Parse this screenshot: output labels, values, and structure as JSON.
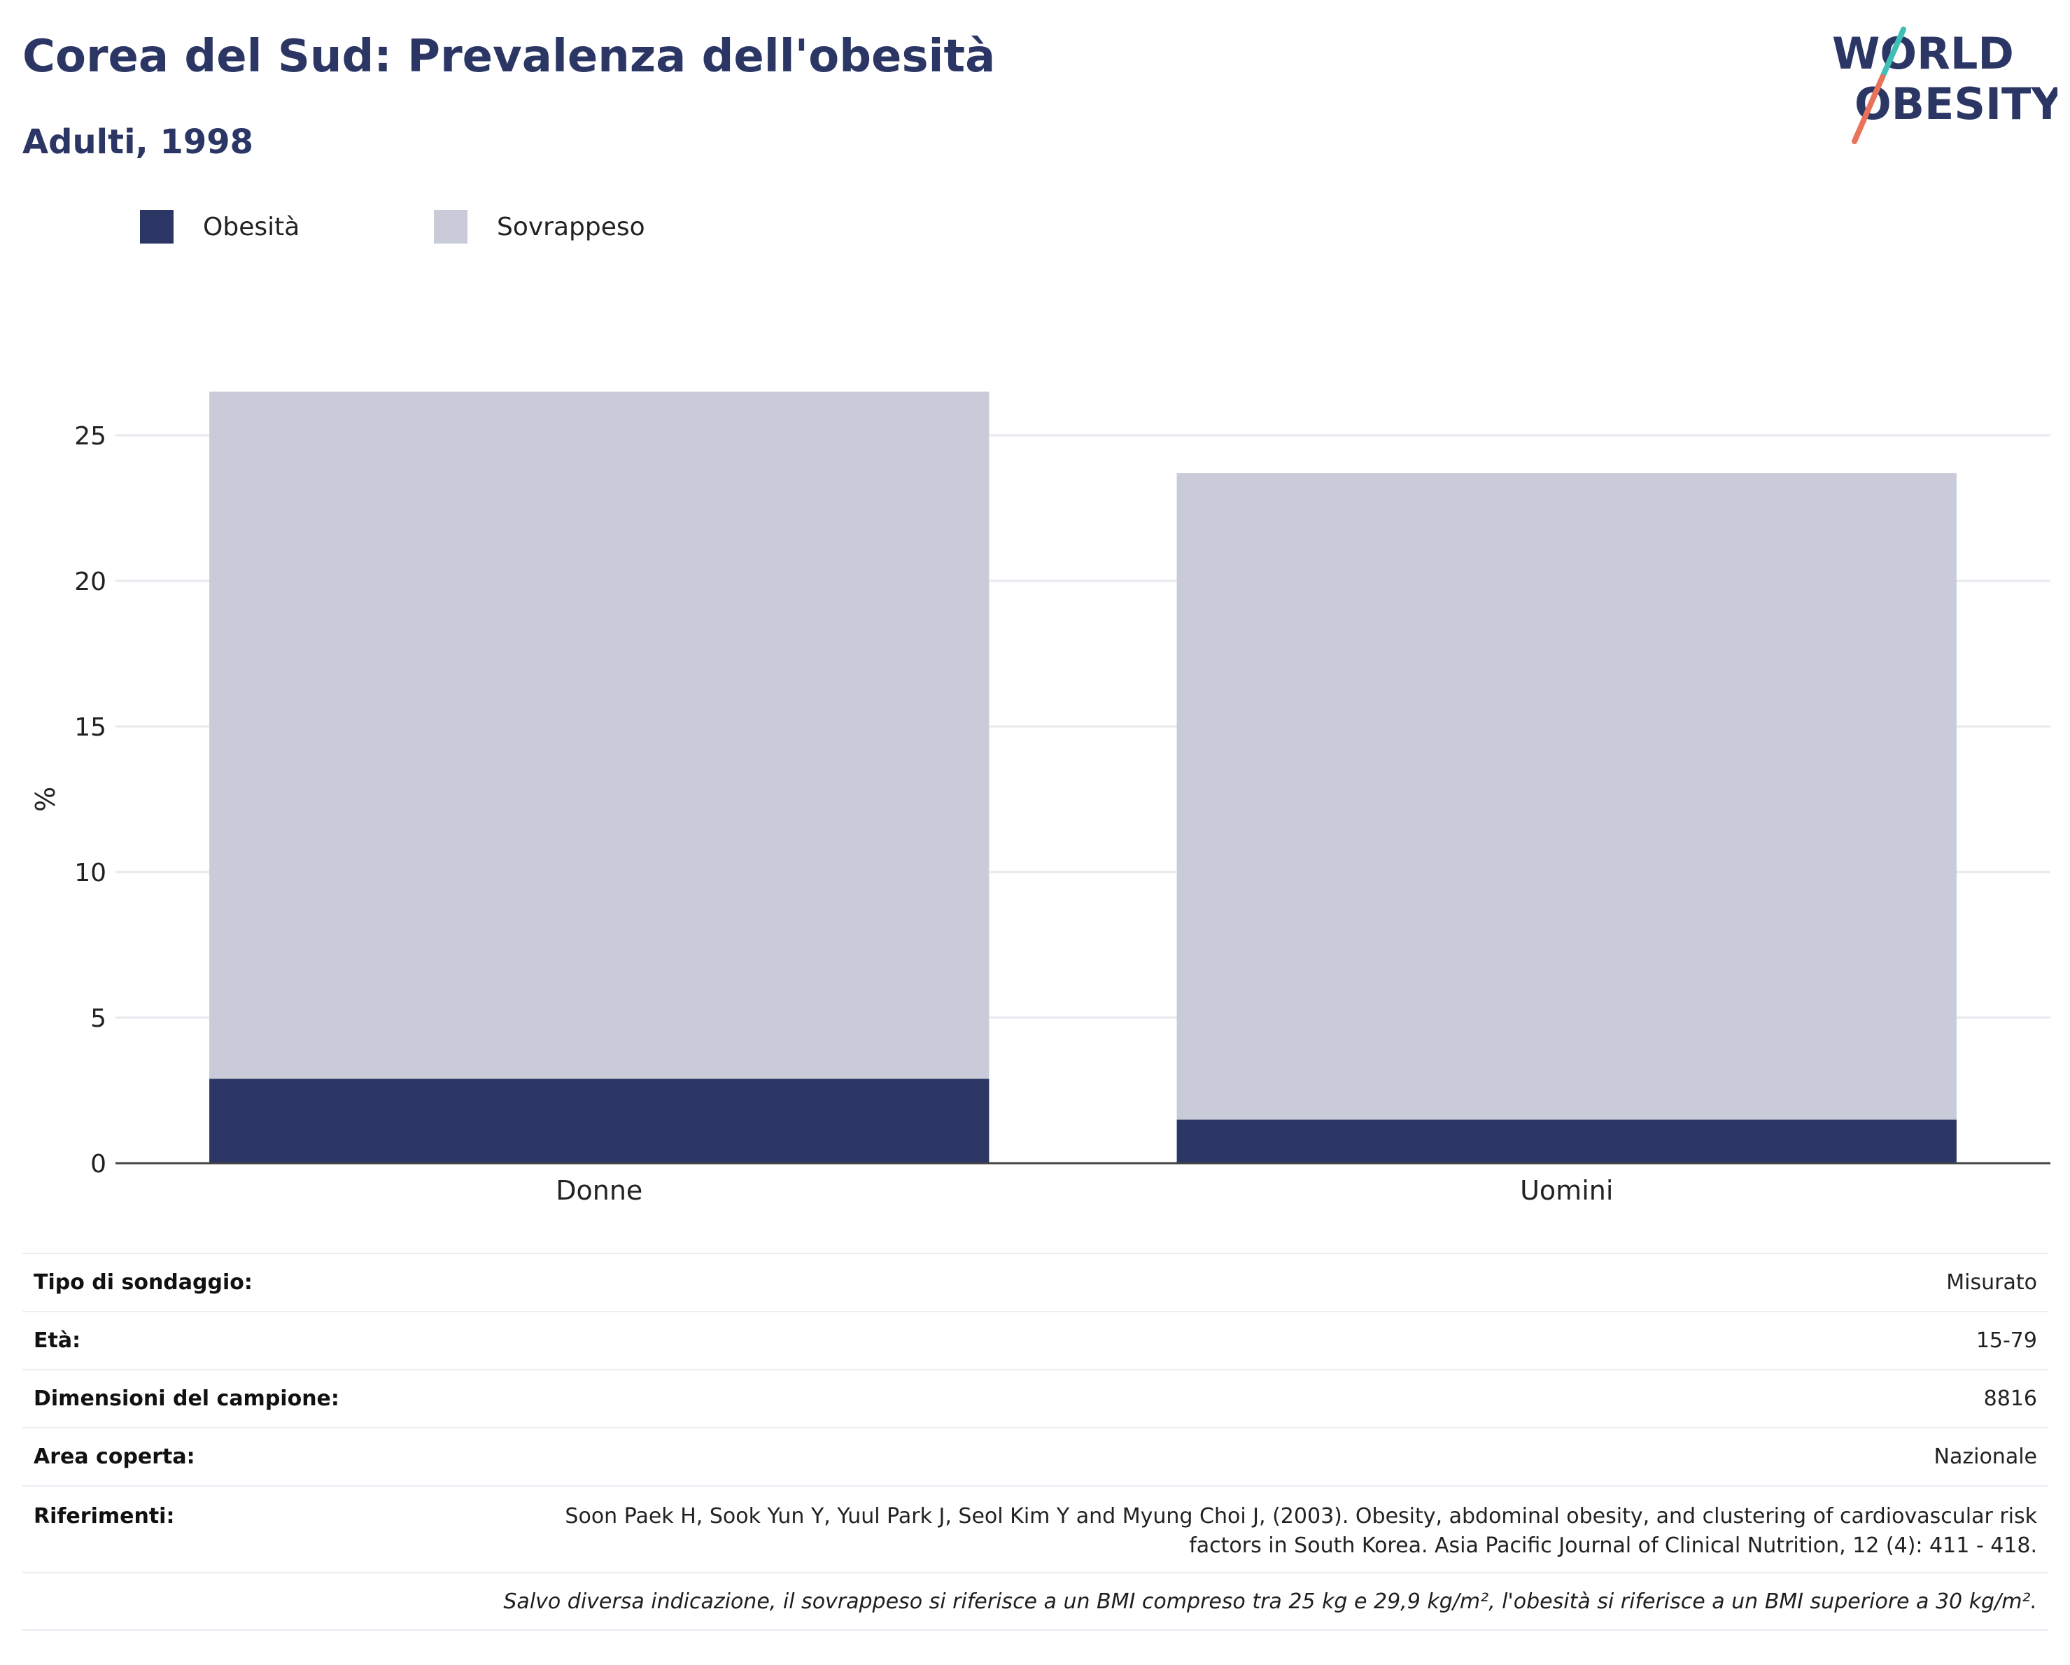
{
  "header": {
    "title": "Corea del Sud: Prevalenza dell'obesità",
    "subtitle": "Adulti, 1998"
  },
  "logo": {
    "line1": "WORLD",
    "line2": "OBESITY"
  },
  "colors": {
    "title": "#2b3664",
    "obesity": "#2b3664",
    "overweight": "#c9ccd8",
    "logo_teal": "#3fbfb5",
    "logo_coral": "#e8735a",
    "grid": "#e8e9ef"
  },
  "legend": [
    {
      "label": "Obesità",
      "color": "#2b3664"
    },
    {
      "label": "Sovrappeso",
      "color": "#c9ccd8"
    }
  ],
  "chart_data": {
    "type": "bar",
    "stacked": true,
    "categories": [
      "Donne",
      "Uomini"
    ],
    "series": [
      {
        "name": "Obesità",
        "values": [
          2.9,
          1.5
        ]
      },
      {
        "name": "Sovrappeso",
        "values": [
          23.6,
          22.2
        ]
      }
    ],
    "xlabel": "",
    "ylabel": "%",
    "ylim": [
      0,
      26.5
    ],
    "yticks": [
      0,
      5,
      10,
      15,
      20,
      25
    ],
    "grid": true,
    "legend_position": "top-left"
  },
  "info": {
    "rows": [
      {
        "key": "Tipo di sondaggio:",
        "value": "Misurato"
      },
      {
        "key": "Età:",
        "value": "15-79"
      },
      {
        "key": "Dimensioni del campione:",
        "value": "8816"
      },
      {
        "key": "Area coperta:",
        "value": "Nazionale"
      }
    ],
    "references_key": "Riferimenti:",
    "references_value": "Soon Paek H, Sook Yun Y, Yuul Park J, Seol Kim Y and Myung Choi J, (2003). Obesity, abdominal obesity, and clustering of cardiovascular risk factors in South Korea. Asia Pacific Journal of Clinical Nutrition, 12 (4): 411 - 418.",
    "note": "Salvo diversa indicazione, il sovrappeso si riferisce a un BMI compreso tra 25 kg e 29,9 kg/m², l'obesità si riferisce a un BMI superiore a 30 kg/m²."
  }
}
